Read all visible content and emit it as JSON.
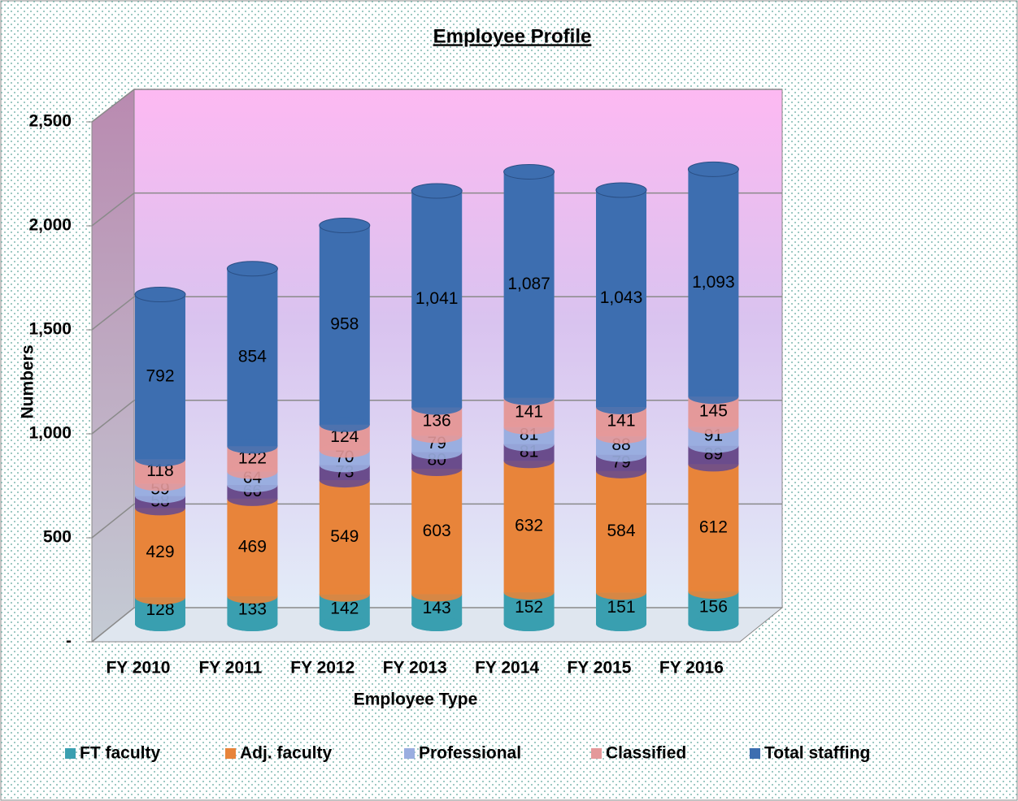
{
  "chart_data": {
    "type": "bar",
    "stacked": true,
    "title": "Employee Profile",
    "x_label": "Employee Type",
    "y_label": "Numbers",
    "categories": [
      "FY 2010",
      "FY 2011",
      "FY 2012",
      "FY 2013",
      "FY 2014",
      "FY 2015",
      "FY 2016"
    ],
    "series": [
      {
        "name": "FT faculty",
        "color": "#3a9fb0",
        "values": [
          128,
          133,
          142,
          143,
          152,
          151,
          156
        ]
      },
      {
        "name": "Adj. faculty",
        "color": "#e8843a",
        "values": [
          429,
          469,
          549,
          603,
          632,
          584,
          612
        ]
      },
      {
        "name": null,
        "color": "#6a4c8c",
        "values": [
          58,
          66,
          73,
          80,
          81,
          79,
          89
        ]
      },
      {
        "name": "Professional",
        "color": "#9aaee0",
        "values": [
          59,
          64,
          70,
          79,
          81,
          88,
          91
        ]
      },
      {
        "name": "Classified",
        "color": "#e4999a",
        "values": [
          118,
          122,
          124,
          136,
          141,
          141,
          145
        ]
      },
      {
        "name": "Total staffing",
        "color": "#3d6eb0",
        "values": [
          792,
          854,
          958,
          1041,
          1087,
          1043,
          1093
        ],
        "value_labels": [
          "792",
          "854",
          "958",
          "1,041",
          "1,087",
          "1,043",
          "1,093"
        ]
      }
    ],
    "ylim": [
      0,
      2500
    ],
    "yticks": [
      {
        "value": 0,
        "label": "-"
      },
      500,
      {
        "value": 1000,
        "label": "1,000"
      },
      {
        "value": 1500,
        "label": "1,500"
      },
      {
        "value": 2000,
        "label": "2,000"
      },
      {
        "value": 2500,
        "label": "2,500"
      }
    ],
    "grid": true,
    "legend": "bottom"
  }
}
